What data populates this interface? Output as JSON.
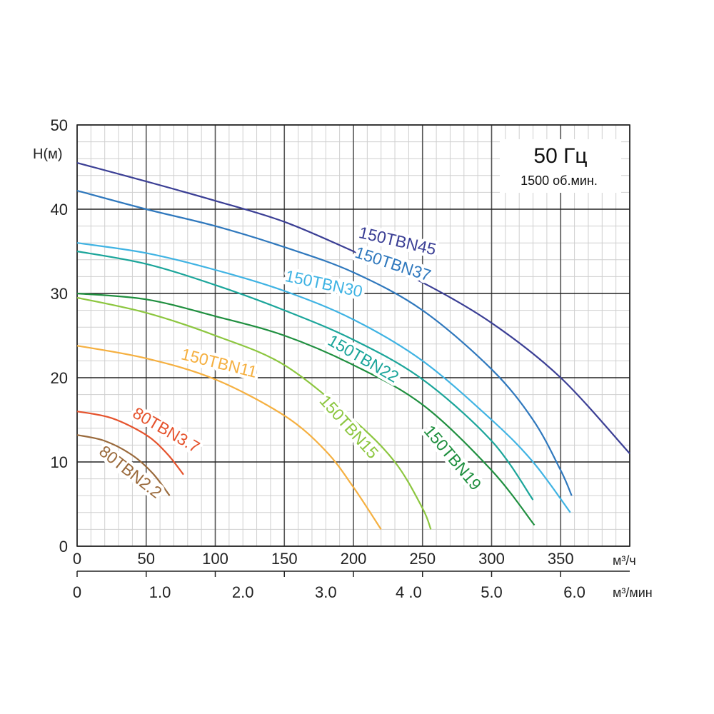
{
  "chart_data": {
    "type": "line",
    "ylabel": "H(м)",
    "annotation_title": "50 Гц",
    "annotation_subtitle": "1500 об.мин.",
    "ylim": [
      0,
      50
    ],
    "xlim": [
      0,
      400
    ],
    "y_ticks": [
      "0",
      "10",
      "20",
      "30",
      "40",
      "50"
    ],
    "x_ticks_primary": [
      "0",
      "50",
      "100",
      "150",
      "200",
      "250",
      "300",
      "350"
    ],
    "x_unit_primary": "м³/ч",
    "x_ticks_secondary": [
      "0",
      "1.0",
      "2.0",
      "3.0",
      "4 .0",
      "5.0",
      "6.0"
    ],
    "x_unit_secondary": "м³/мин",
    "grid": true,
    "series": [
      {
        "name": "150TBN45",
        "color": "#3b3f95",
        "x": [
          0,
          50,
          100,
          150,
          200,
          250,
          300,
          350,
          400
        ],
        "y": [
          45.5,
          43.3,
          41.0,
          38.5,
          35.0,
          31.3,
          26.5,
          20.0,
          11.0
        ]
      },
      {
        "name": "150TBN37",
        "color": "#2f78bd",
        "x": [
          0,
          50,
          100,
          150,
          200,
          250,
          300,
          330,
          350,
          358
        ],
        "y": [
          42.2,
          40.0,
          38.0,
          35.5,
          32.5,
          28.0,
          21.0,
          15.0,
          9.0,
          6.0
        ]
      },
      {
        "name": "150TBN30",
        "color": "#3fb3e3",
        "x": [
          0,
          50,
          100,
          150,
          200,
          250,
          300,
          330,
          357
        ],
        "y": [
          36.0,
          34.8,
          32.8,
          30.3,
          26.9,
          22.0,
          15.0,
          10.0,
          4.0
        ]
      },
      {
        "name": "150TBN22",
        "color": "#1ba59a",
        "x": [
          0,
          50,
          100,
          150,
          200,
          250,
          300,
          330
        ],
        "y": [
          35.0,
          33.5,
          31.0,
          28.0,
          24.5,
          19.8,
          12.5,
          5.5
        ]
      },
      {
        "name": "150TBN19",
        "color": "#1f8f3f",
        "x": [
          0,
          50,
          100,
          150,
          200,
          250,
          300,
          331
        ],
        "y": [
          30.0,
          29.3,
          27.3,
          25.0,
          21.5,
          16.8,
          9.0,
          2.5
        ]
      },
      {
        "name": "150TBN15",
        "color": "#8cc63f",
        "x": [
          0,
          50,
          100,
          150,
          200,
          230,
          250,
          256
        ],
        "y": [
          29.5,
          27.7,
          25.0,
          21.5,
          15.0,
          10.0,
          4.5,
          2.0
        ]
      },
      {
        "name": "150TBN11",
        "color": "#f5b041",
        "x": [
          0,
          50,
          100,
          150,
          180,
          200,
          220
        ],
        "y": [
          23.8,
          22.3,
          19.8,
          15.5,
          11.3,
          7.0,
          2.0
        ]
      },
      {
        "name": "80TBN3.7",
        "color": "#e5532d",
        "x": [
          0,
          25,
          50,
          65,
          77
        ],
        "y": [
          16.0,
          15.2,
          13.2,
          11.0,
          8.5
        ]
      },
      {
        "name": "80TBN2.2",
        "color": "#9a6a3c",
        "x": [
          0,
          20,
          40,
          55,
          67
        ],
        "y": [
          13.2,
          12.5,
          10.8,
          8.6,
          6.0
        ]
      }
    ]
  }
}
